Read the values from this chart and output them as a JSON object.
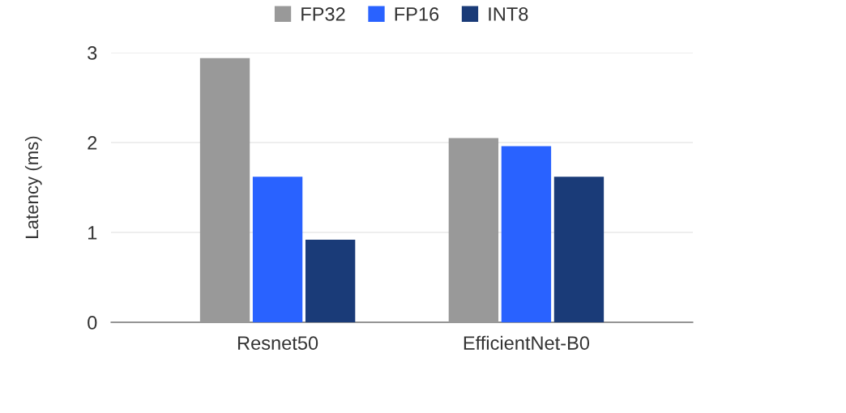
{
  "chart_data": {
    "type": "bar",
    "ylabel": "Latency (ms)",
    "categories": [
      "Resnet50",
      "EfficientNet-B0"
    ],
    "series": [
      {
        "name": "FP32",
        "color": "#999999",
        "values": [
          2.94,
          2.05
        ]
      },
      {
        "name": "FP16",
        "color": "#2962ff",
        "values": [
          1.62,
          1.96
        ]
      },
      {
        "name": "INT8",
        "color": "#1a3b78",
        "values": [
          0.92,
          1.62
        ]
      }
    ],
    "ylim": [
      0,
      3
    ],
    "yticks": [
      0,
      1,
      2,
      3
    ],
    "grid": "y",
    "legend": "top"
  }
}
